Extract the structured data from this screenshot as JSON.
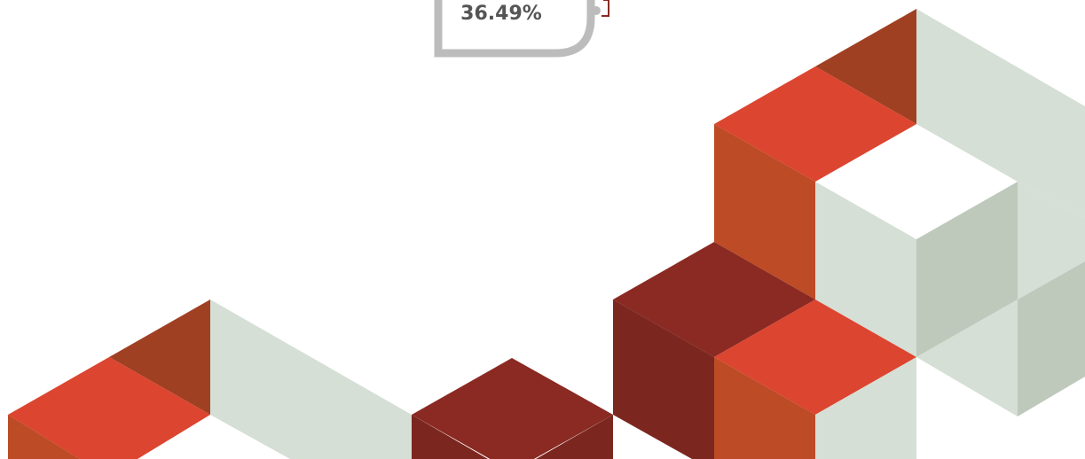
{
  "label": "36.49%"
}
